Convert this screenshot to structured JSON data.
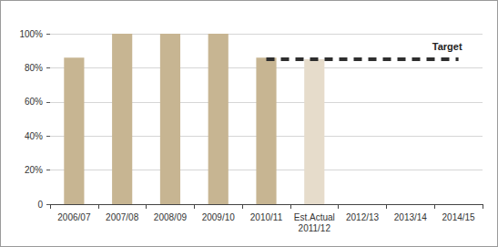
{
  "chart_data": {
    "type": "bar",
    "categories": [
      "2006/07",
      "2007/08",
      "2008/09",
      "2009/10",
      "2010/11",
      "Est.Actual\n2011/12",
      "2012/13",
      "2013/14",
      "2014/15"
    ],
    "series": [
      {
        "type": "bar",
        "values": [
          86,
          100,
          100,
          100,
          86,
          85,
          null,
          null,
          null
        ],
        "colors": [
          "#c7b592",
          "#c7b592",
          "#c7b592",
          "#c7b592",
          "#c7b592",
          "#e6dccb",
          "#c7b592",
          "#c7b592",
          "#c7b592"
        ]
      },
      {
        "name": "Target",
        "type": "line",
        "color": "#2e2e2e",
        "line_style": "dashed",
        "values": [
          null,
          null,
          null,
          null,
          85,
          85,
          85,
          85,
          85
        ]
      }
    ],
    "ylim": [
      0,
      100
    ],
    "yticks": [
      0,
      {
        "value": 20,
        "label": "20%"
      },
      {
        "value": 40,
        "label": "40%"
      },
      {
        "value": 60,
        "label": "60%"
      },
      {
        "value": 80,
        "label": "80%"
      },
      {
        "value": 100,
        "label": "100%"
      }
    ],
    "grid": true
  }
}
